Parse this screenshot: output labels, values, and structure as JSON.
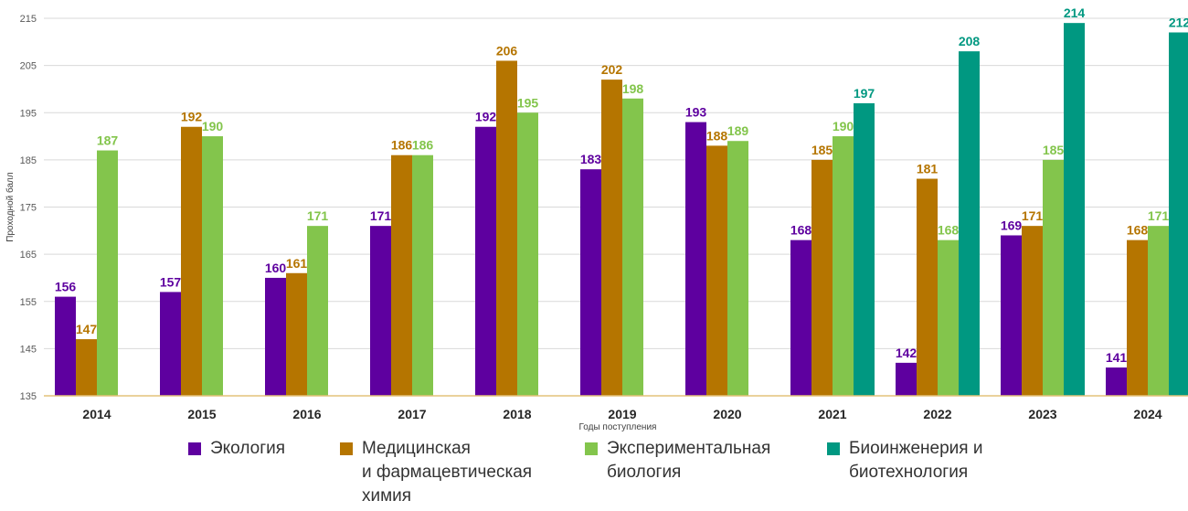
{
  "chart_data": {
    "type": "bar",
    "title": "",
    "xlabel": "Годы поступления",
    "ylabel": "Проходной балл",
    "ylim": [
      135,
      215
    ],
    "yticks": [
      135,
      145,
      155,
      165,
      175,
      185,
      195,
      205,
      215
    ],
    "grid": true,
    "legend_position": "bottom",
    "data_labels": true,
    "categories": [
      "2014",
      "2015",
      "2016",
      "2017",
      "2018",
      "2019",
      "2020",
      "2021",
      "2022",
      "2023",
      "2024"
    ],
    "series": [
      {
        "name": "Экология",
        "label_lines": [
          "Экология"
        ],
        "color": "#5e009f",
        "values": [
          156,
          157,
          160,
          171,
          192,
          183,
          193,
          168,
          142,
          169,
          141
        ]
      },
      {
        "name": "Медицинская и фармацевтическая химия",
        "label_lines": [
          "Медицинская",
          "и фармацевтическая",
          "химия"
        ],
        "color": "#b57500",
        "values": [
          147,
          192,
          161,
          186,
          206,
          202,
          188,
          185,
          181,
          171,
          168
        ]
      },
      {
        "name": "Экспериментальная биология",
        "label_lines": [
          "Экспериментальная",
          "биология"
        ],
        "color": "#83c54c",
        "values": [
          187,
          190,
          171,
          186,
          195,
          198,
          189,
          190,
          168,
          185,
          171
        ]
      },
      {
        "name": "Биоинженерия и биотехнология",
        "label_lines": [
          "Биоинженерия и",
          "биотехнология"
        ],
        "color": "#009881",
        "values": [
          null,
          null,
          null,
          null,
          null,
          null,
          null,
          197,
          208,
          214,
          212
        ]
      }
    ]
  }
}
